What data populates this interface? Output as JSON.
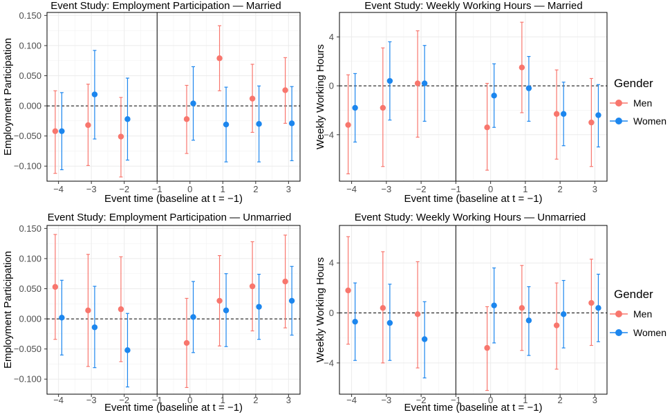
{
  "colors": {
    "men": "#F8766D",
    "women": "#1C86EE",
    "grid": "#EBEBEB"
  },
  "legend": {
    "title": "Gender",
    "items": [
      {
        "label": "Men",
        "color": "#F8766D"
      },
      {
        "label": "Women",
        "color": "#1C86EE"
      }
    ]
  },
  "chart_data": [
    {
      "type": "scatter",
      "title": "Event Study: Employment Participation — Married",
      "xlabel": "Event time (baseline at t = −1)",
      "ylabel": "Employment Participation",
      "xlim": [
        -4,
        3
      ],
      "ylim": [
        -0.125,
        0.155
      ],
      "xticks": [
        -4,
        -3,
        -2,
        -1,
        0,
        1,
        2,
        3
      ],
      "xtick_labels": [
        "−4",
        "−3",
        "−2",
        "−1",
        "0",
        "1",
        "2",
        "3"
      ],
      "yticks": [
        -0.1,
        -0.05,
        0,
        0.05,
        0.1,
        0.15
      ],
      "ytick_labels": [
        "−0.100",
        "−0.050",
        "0.000",
        "0.050",
        "0.100",
        "0.150"
      ],
      "baseline_x": -1,
      "zero_line": 0,
      "grid": true,
      "series": [
        {
          "name": "Men",
          "x": [
            -4,
            -3,
            -2,
            0,
            1,
            2,
            3
          ],
          "y": [
            -0.042,
            -0.032,
            -0.051,
            -0.022,
            0.079,
            0.012,
            0.026
          ],
          "lo": [
            -0.112,
            -0.099,
            -0.118,
            -0.079,
            0.025,
            -0.044,
            -0.029
          ],
          "hi": [
            0.025,
            0.036,
            0.014,
            0.034,
            0.133,
            0.069,
            0.08
          ]
        },
        {
          "name": "Women",
          "x": [
            -4,
            -3,
            -2,
            0,
            1,
            2,
            3
          ],
          "y": [
            -0.042,
            0.019,
            -0.022,
            0.004,
            -0.031,
            -0.03,
            -0.029
          ],
          "lo": [
            -0.106,
            -0.055,
            -0.09,
            -0.057,
            -0.093,
            -0.093,
            -0.091
          ],
          "hi": [
            0.022,
            0.092,
            0.046,
            0.065,
            0.031,
            0.033,
            0.032
          ]
        }
      ]
    },
    {
      "type": "scatter",
      "title": "Event Study: Weekly Working Hours — Married",
      "xlabel": "Event time (baseline at t = −1)",
      "ylabel": "Weekly Working Hours",
      "xlim": [
        -4,
        3
      ],
      "ylim": [
        -7.8,
        6.0
      ],
      "xticks": [
        -4,
        -3,
        -2,
        -1,
        0,
        1,
        2,
        3
      ],
      "xtick_labels": [
        "−4",
        "−3",
        "−2",
        "−1",
        "0",
        "1",
        "2",
        "3"
      ],
      "yticks": [
        -4,
        0,
        4
      ],
      "ytick_labels": [
        "−4",
        "0",
        "4"
      ],
      "baseline_x": -1,
      "zero_line": 0,
      "grid": true,
      "series": [
        {
          "name": "Men",
          "x": [
            -4,
            -3,
            -2,
            0,
            1,
            2,
            3
          ],
          "y": [
            -3.2,
            -1.8,
            0.2,
            -3.4,
            1.5,
            -2.3,
            -3.0
          ],
          "lo": [
            -7.2,
            -6.6,
            -4.2,
            -6.9,
            -2.2,
            -6.0,
            -6.6
          ],
          "hi": [
            0.9,
            3.1,
            4.5,
            0.2,
            5.2,
            1.3,
            0.6
          ]
        },
        {
          "name": "Women",
          "x": [
            -4,
            -3,
            -2,
            0,
            1,
            2,
            3
          ],
          "y": [
            -1.8,
            0.4,
            0.2,
            -0.8,
            -0.2,
            -2.3,
            -2.4
          ],
          "lo": [
            -4.6,
            -2.8,
            -2.9,
            -3.4,
            -2.9,
            -4.9,
            -5.0
          ],
          "hi": [
            1.0,
            3.6,
            3.3,
            1.8,
            2.4,
            0.3,
            0.1
          ]
        }
      ]
    },
    {
      "type": "scatter",
      "title": "Event Study: Employment Participation — Unmarried",
      "xlabel": "Event time (baseline at t = −1)",
      "ylabel": "Employment Participation",
      "xlim": [
        -4,
        3
      ],
      "ylim": [
        -0.125,
        0.155
      ],
      "xticks": [
        -4,
        -3,
        -2,
        -1,
        0,
        1,
        2,
        3
      ],
      "xtick_labels": [
        "−4",
        "−3",
        "−2",
        "−1",
        "0",
        "1",
        "2",
        "3"
      ],
      "yticks": [
        -0.1,
        -0.05,
        0,
        0.05,
        0.1,
        0.15
      ],
      "ytick_labels": [
        "−0.100",
        "−0.050",
        "0.000",
        "0.050",
        "0.100",
        "0.150"
      ],
      "baseline_x": -1,
      "zero_line": 0,
      "grid": true,
      "series": [
        {
          "name": "Men",
          "x": [
            -4,
            -3,
            -2,
            0,
            1,
            2,
            3
          ],
          "y": [
            0.053,
            0.014,
            0.016,
            -0.04,
            0.03,
            0.054,
            0.062
          ],
          "lo": [
            -0.034,
            -0.079,
            -0.071,
            -0.114,
            -0.045,
            -0.02,
            -0.015
          ],
          "hi": [
            0.14,
            0.107,
            0.103,
            0.034,
            0.105,
            0.128,
            0.139
          ]
        },
        {
          "name": "Women",
          "x": [
            -4,
            -3,
            -2,
            0,
            1,
            2,
            3
          ],
          "y": [
            0.002,
            -0.014,
            -0.052,
            0.003,
            0.014,
            0.02,
            0.03
          ],
          "lo": [
            -0.06,
            -0.081,
            -0.113,
            -0.056,
            -0.046,
            -0.034,
            -0.027
          ],
          "hi": [
            0.064,
            0.054,
            0.009,
            0.062,
            0.075,
            0.074,
            0.087
          ]
        }
      ]
    },
    {
      "type": "scatter",
      "title": "Event Study: Weekly Working Hours — Unmarried",
      "xlabel": "Event time (baseline at t = −1)",
      "ylabel": "Weekly Working Hours",
      "xlim": [
        -4,
        3
      ],
      "ylim": [
        -6.5,
        7.0
      ],
      "xticks": [
        -4,
        -3,
        -2,
        -1,
        0,
        1,
        2,
        3
      ],
      "xtick_labels": [
        "−4",
        "−3",
        "−2",
        "−1",
        "0",
        "1",
        "2",
        "3"
      ],
      "yticks": [
        -4,
        0,
        4
      ],
      "ytick_labels": [
        "−4",
        "0",
        "4"
      ],
      "baseline_x": -1,
      "zero_line": 0,
      "grid": true,
      "series": [
        {
          "name": "Men",
          "x": [
            -4,
            -3,
            -2,
            0,
            1,
            2,
            3
          ],
          "y": [
            1.8,
            0.4,
            -0.1,
            -2.8,
            0.4,
            -1.0,
            0.8
          ],
          "lo": [
            -2.5,
            -4.0,
            -4.4,
            -6.2,
            -3.0,
            -4.5,
            -2.6
          ],
          "hi": [
            6.1,
            4.9,
            4.1,
            0.5,
            3.8,
            2.4,
            4.3
          ]
        },
        {
          "name": "Women",
          "x": [
            -4,
            -3,
            -2,
            0,
            1,
            2,
            3
          ],
          "y": [
            -0.7,
            -0.8,
            -2.1,
            0.6,
            -0.6,
            -0.1,
            0.4
          ],
          "lo": [
            -3.8,
            -3.8,
            -5.2,
            -2.4,
            -3.4,
            -2.8,
            -2.3
          ],
          "hi": [
            2.4,
            2.3,
            0.9,
            3.6,
            2.1,
            2.6,
            3.1
          ]
        }
      ]
    }
  ]
}
